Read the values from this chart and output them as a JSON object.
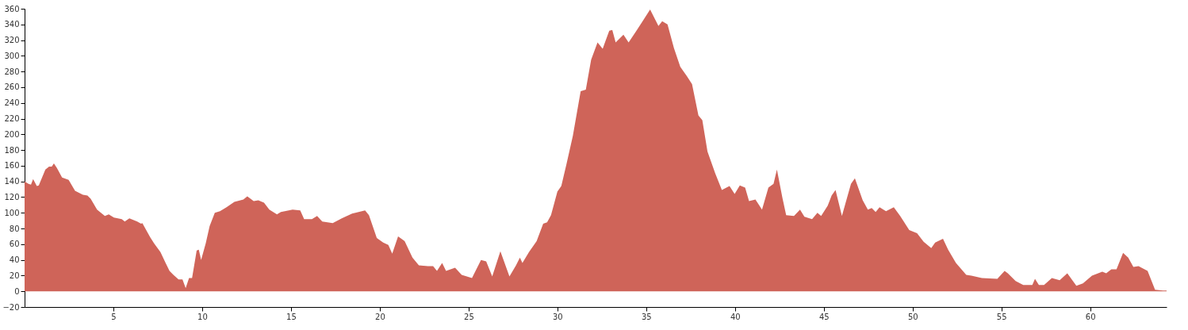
{
  "chart_data": {
    "type": "area",
    "x": [
      0,
      0.22,
      0.36,
      0.48,
      0.69,
      0.8,
      1.17,
      1.38,
      1.53,
      1.65,
      1.82,
      2.11,
      2.48,
      2.84,
      3.28,
      3.54,
      3.72,
      4.08,
      4.52,
      4.74,
      5.03,
      5.47,
      5.64,
      5.9,
      6.34,
      6.56,
      6.63,
      7.07,
      7.29,
      7.65,
      7.94,
      8.16,
      8.38,
      8.67,
      8.89,
      9.07,
      9.26,
      9.43,
      9.69,
      9.81,
      9.94,
      10.2,
      10.42,
      10.71,
      11.0,
      11.37,
      11.81,
      12.32,
      12.54,
      12.9,
      13.16,
      13.48,
      13.78,
      14.21,
      14.43,
      15.09,
      15.52,
      15.74,
      16.18,
      16.47,
      16.76,
      17.35,
      17.86,
      18.44,
      19.17,
      19.39,
      19.83,
      20.19,
      20.48,
      20.7,
      21.03,
      21.4,
      21.84,
      22.2,
      22.71,
      23.0,
      23.22,
      23.51,
      23.73,
      24.24,
      24.61,
      25.19,
      25.7,
      25.99,
      26.33,
      26.79,
      27.3,
      27.67,
      27.89,
      28.03,
      28.4,
      28.83,
      29.2,
      29.42,
      29.64,
      30.0,
      30.22,
      30.51,
      30.87,
      31.31,
      31.6,
      31.9,
      32.26,
      32.55,
      32.92,
      33.09,
      33.28,
      33.72,
      34.01,
      34.45,
      34.74,
      35.22,
      35.69,
      35.9,
      36.2,
      36.56,
      36.92,
      37.29,
      37.58,
      37.94,
      38.16,
      38.45,
      38.89,
      39.26,
      39.69,
      39.98,
      40.27,
      40.57,
      40.79,
      41.15,
      41.52,
      41.88,
      42.17,
      42.36,
      42.67,
      42.88,
      43.32,
      43.66,
      43.91,
      44.34,
      44.64,
      44.85,
      45.22,
      45.44,
      45.66,
      46.02,
      46.53,
      46.75,
      47.19,
      47.48,
      47.7,
      47.92,
      48.14,
      48.5,
      48.94,
      49.3,
      49.81,
      50.25,
      50.62,
      51.05,
      51.27,
      51.71,
      52.0,
      52.44,
      53.02,
      53.31,
      53.9,
      54.77,
      55.18,
      55.36,
      55.8,
      56.23,
      56.74,
      56.89,
      57.11,
      57.4,
      57.84,
      58.28,
      58.71,
      59.22,
      59.59,
      60.1,
      60.68,
      60.9,
      61.19,
      61.48,
      61.85,
      62.14,
      62.43,
      62.72,
      63.23,
      63.65,
      64.09,
      64.3
    ],
    "series": [
      {
        "color": "#cf6459",
        "values": [
          140,
          137,
          136,
          143,
          134,
          135,
          155,
          159,
          159,
          163,
          157,
          145,
          142,
          128,
          123,
          122,
          118,
          104,
          96,
          98,
          94,
          92,
          89,
          93,
          89,
          86,
          87,
          69,
          61,
          50,
          36,
          26,
          21,
          15,
          15,
          4,
          17,
          17,
          52,
          53,
          40,
          61,
          83,
          100,
          102,
          107,
          114,
          117,
          121,
          115,
          116,
          113,
          104,
          98,
          101,
          104,
          103,
          92,
          92,
          96,
          89,
          87,
          93,
          99,
          103,
          97,
          68,
          62,
          59,
          48,
          70,
          64,
          43,
          33,
          32,
          32,
          26,
          36,
          26,
          30,
          21,
          17,
          40,
          38,
          19,
          51,
          19,
          33,
          43,
          36,
          50,
          64,
          86,
          88,
          97,
          127,
          134,
          162,
          198,
          255,
          257,
          295,
          317,
          309,
          332,
          333,
          317,
          327,
          317,
          332,
          342,
          359,
          338,
          344,
          340,
          310,
          286,
          274,
          264,
          224,
          218,
          178,
          150,
          129,
          134,
          124,
          135,
          132,
          115,
          117,
          104,
          132,
          137,
          155,
          119,
          97,
          96,
          104,
          95,
          92,
          100,
          96,
          109,
          122,
          129,
          96,
          137,
          144,
          116,
          104,
          106,
          101,
          107,
          102,
          107,
          96,
          78,
          74,
          63,
          55,
          62,
          67,
          53,
          36,
          21,
          20,
          17,
          16,
          26,
          23,
          13,
          8,
          8,
          16,
          8,
          8,
          17,
          14,
          23,
          7,
          10,
          20,
          25,
          23,
          28,
          28,
          49,
          43,
          31,
          32,
          26,
          2,
          1,
          1
        ]
      }
    ],
    "xlim": [
      0,
      64.3
    ],
    "xticks": [
      5,
      10,
      15,
      20,
      25,
      30,
      35,
      40,
      45,
      50,
      55,
      60
    ],
    "ylim": [
      -20,
      360
    ],
    "yticks": [
      -20,
      0,
      20,
      40,
      60,
      80,
      100,
      120,
      140,
      160,
      180,
      200,
      220,
      240,
      260,
      280,
      300,
      320,
      340,
      360
    ],
    "grid": false
  }
}
